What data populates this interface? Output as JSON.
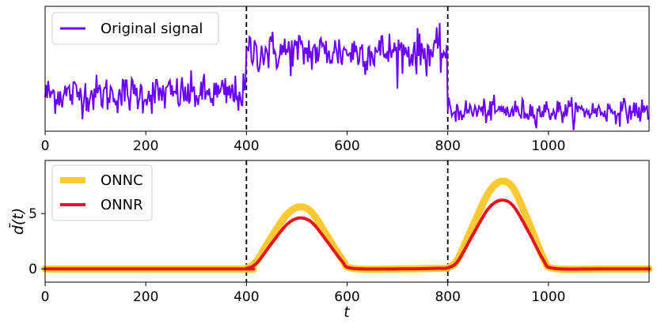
{
  "chart_data": [
    {
      "type": "line",
      "panel": "top",
      "xlim": [
        0,
        1200
      ],
      "ylim": [
        -1.75,
        4.15
      ],
      "xticks": [
        0,
        200,
        400,
        600,
        800,
        1000
      ],
      "yticks": [],
      "xlabel": "",
      "ylabel": "",
      "vlines": [
        400,
        800
      ],
      "legend": {
        "placement": "upper-left",
        "entries": [
          {
            "label": "Original signal",
            "color": "#6a00ff"
          }
        ]
      },
      "series": [
        {
          "name": "Original signal",
          "color": "#6a00ff",
          "segments": [
            {
              "x_start": 0,
              "x_end": 400,
              "mean": 0.0,
              "spread": 0.45
            },
            {
              "x_start": 400,
              "x_end": 800,
              "mean": 2.0,
              "spread": 0.5
            },
            {
              "x_start": 800,
              "x_end": 1200,
              "mean": -0.8,
              "spread": 0.28
            }
          ]
        }
      ]
    },
    {
      "type": "line",
      "panel": "bottom",
      "xlim": [
        0,
        1200
      ],
      "ylim": [
        -1.2,
        9.8
      ],
      "xticks": [
        0,
        200,
        400,
        600,
        800,
        1000
      ],
      "yticks": [
        0,
        5
      ],
      "xlabel": "t",
      "ylabel": "d̄(t)",
      "vlines": [
        400,
        800
      ],
      "legend": {
        "placement": "upper-left",
        "entries": [
          {
            "label": "ONNC",
            "color": "#ffc933"
          },
          {
            "label": "ONNR",
            "color": "#e8141e"
          }
        ]
      },
      "series": [
        {
          "name": "ONNC",
          "color": "#ffc933",
          "x": [
            0,
            380,
            400,
            420,
            450,
            480,
            505,
            530,
            560,
            590,
            610,
            700,
            780,
            800,
            820,
            850,
            880,
            905,
            930,
            960,
            990,
            1010,
            1100,
            1200
          ],
          "y": [
            0,
            0,
            0.05,
            0.7,
            2.9,
            4.9,
            5.6,
            5.1,
            3.0,
            0.9,
            0.05,
            0,
            0.05,
            0.1,
            0.9,
            3.9,
            6.8,
            7.9,
            7.3,
            4.3,
            1.0,
            0.05,
            0,
            0
          ]
        },
        {
          "name": "ONNR",
          "color": "#e8141e",
          "x": [
            0,
            380,
            400,
            420,
            450,
            480,
            505,
            530,
            560,
            590,
            610,
            700,
            780,
            800,
            820,
            850,
            880,
            905,
            930,
            960,
            990,
            1010,
            1100,
            1200
          ],
          "y": [
            0,
            0,
            0.05,
            0.5,
            2.3,
            4.0,
            4.6,
            4.2,
            2.5,
            0.7,
            0.05,
            0,
            0.05,
            0.1,
            0.7,
            3.1,
            5.4,
            6.2,
            5.7,
            3.4,
            0.8,
            0.05,
            0,
            0
          ]
        }
      ]
    }
  ]
}
